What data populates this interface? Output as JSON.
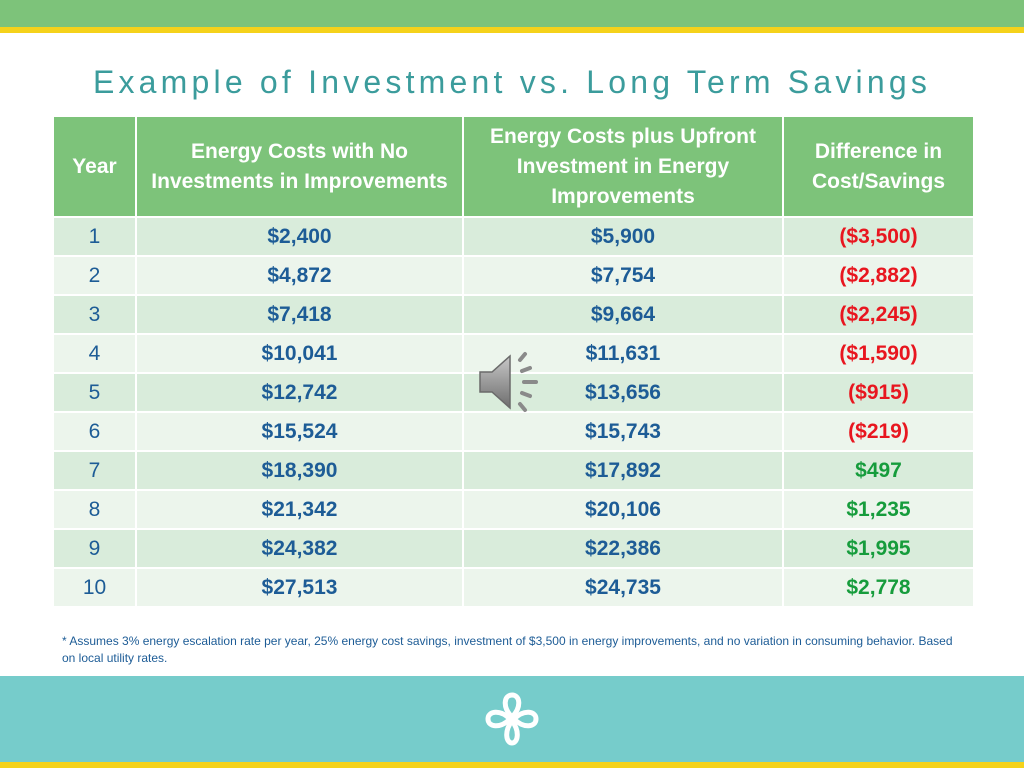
{
  "title": "Example of Investment vs. Long Term Savings",
  "table": {
    "headers": [
      "Year",
      "Energy Costs with No Investments in Improvements",
      "Energy Costs plus Upfront Investment in Energy Improvements",
      "Difference in Cost/Savings"
    ],
    "rows": [
      {
        "year": "1",
        "no_investment": "$2,400",
        "with_investment": "$5,900",
        "difference": "($3,500)",
        "type": "neg"
      },
      {
        "year": "2",
        "no_investment": "$4,872",
        "with_investment": "$7,754",
        "difference": "($2,882)",
        "type": "neg"
      },
      {
        "year": "3",
        "no_investment": "$7,418",
        "with_investment": "$9,664",
        "difference": "($2,245)",
        "type": "neg"
      },
      {
        "year": "4",
        "no_investment": "$10,041",
        "with_investment": "$11,631",
        "difference": "($1,590)",
        "type": "neg"
      },
      {
        "year": "5",
        "no_investment": "$12,742",
        "with_investment": "$13,656",
        "difference": "($915)",
        "type": "neg"
      },
      {
        "year": "6",
        "no_investment": "$15,524",
        "with_investment": "$15,743",
        "difference": "($219)",
        "type": "neg"
      },
      {
        "year": "7",
        "no_investment": "$18,390",
        "with_investment": "$17,892",
        "difference": "$497",
        "type": "pos"
      },
      {
        "year": "8",
        "no_investment": "$21,342",
        "with_investment": "$20,106",
        "difference": "$1,235",
        "type": "pos"
      },
      {
        "year": "9",
        "no_investment": "$24,382",
        "with_investment": "$22,386",
        "difference": "$1,995",
        "type": "pos"
      },
      {
        "year": "10",
        "no_investment": "$27,513",
        "with_investment": "$24,735",
        "difference": "$2,778",
        "type": "pos"
      }
    ]
  },
  "footnote": "* Assumes 3% energy escalation rate per year, 25% energy cost savings, investment of $3,500 in energy improvements, and no variation in consuming behavior. Based on local utility rates.",
  "icons": {
    "speaker": "speaker-audio-icon",
    "logo": "clover-logo-icon"
  },
  "colors": {
    "header_green": "#7dc37a",
    "accent_yellow": "#f5d21b",
    "title_teal": "#3b9c9c",
    "value_blue": "#1d5c96",
    "negative_red": "#e8161f",
    "positive_green": "#169c3c",
    "footer_teal": "#76cccb"
  }
}
